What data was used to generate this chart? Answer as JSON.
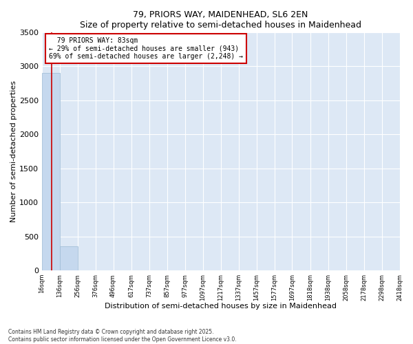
{
  "title": "79, PRIORS WAY, MAIDENHEAD, SL6 2EN",
  "subtitle": "Size of property relative to semi-detached houses in Maidenhead",
  "xlabel": "Distribution of semi-detached houses by size in Maidenhead",
  "ylabel": "Number of semi-detached properties",
  "bin_edges": [
    16,
    136,
    256,
    376,
    496,
    617,
    737,
    857,
    977,
    1097,
    1217,
    1337,
    1457,
    1577,
    1697,
    1818,
    1938,
    2058,
    2178,
    2298,
    2418
  ],
  "counts": [
    2900,
    350,
    5,
    2,
    1,
    1,
    0,
    0,
    0,
    0,
    0,
    0,
    0,
    0,
    0,
    0,
    0,
    0,
    0,
    0
  ],
  "bar_color": "#c5d8ee",
  "bar_edge_color": "#9bbad4",
  "property_size": 83,
  "property_label": "79 PRIORS WAY: 83sqm",
  "pct_smaller": 29,
  "pct_larger": 69,
  "n_smaller": 943,
  "n_larger": 2248,
  "vline_color": "#cc0000",
  "annotation_box_color": "#cc0000",
  "ylim": [
    0,
    3500
  ],
  "bg_color": "#dde8f5",
  "footer": "Contains HM Land Registry data © Crown copyright and database right 2025.\nContains public sector information licensed under the Open Government Licence v3.0."
}
